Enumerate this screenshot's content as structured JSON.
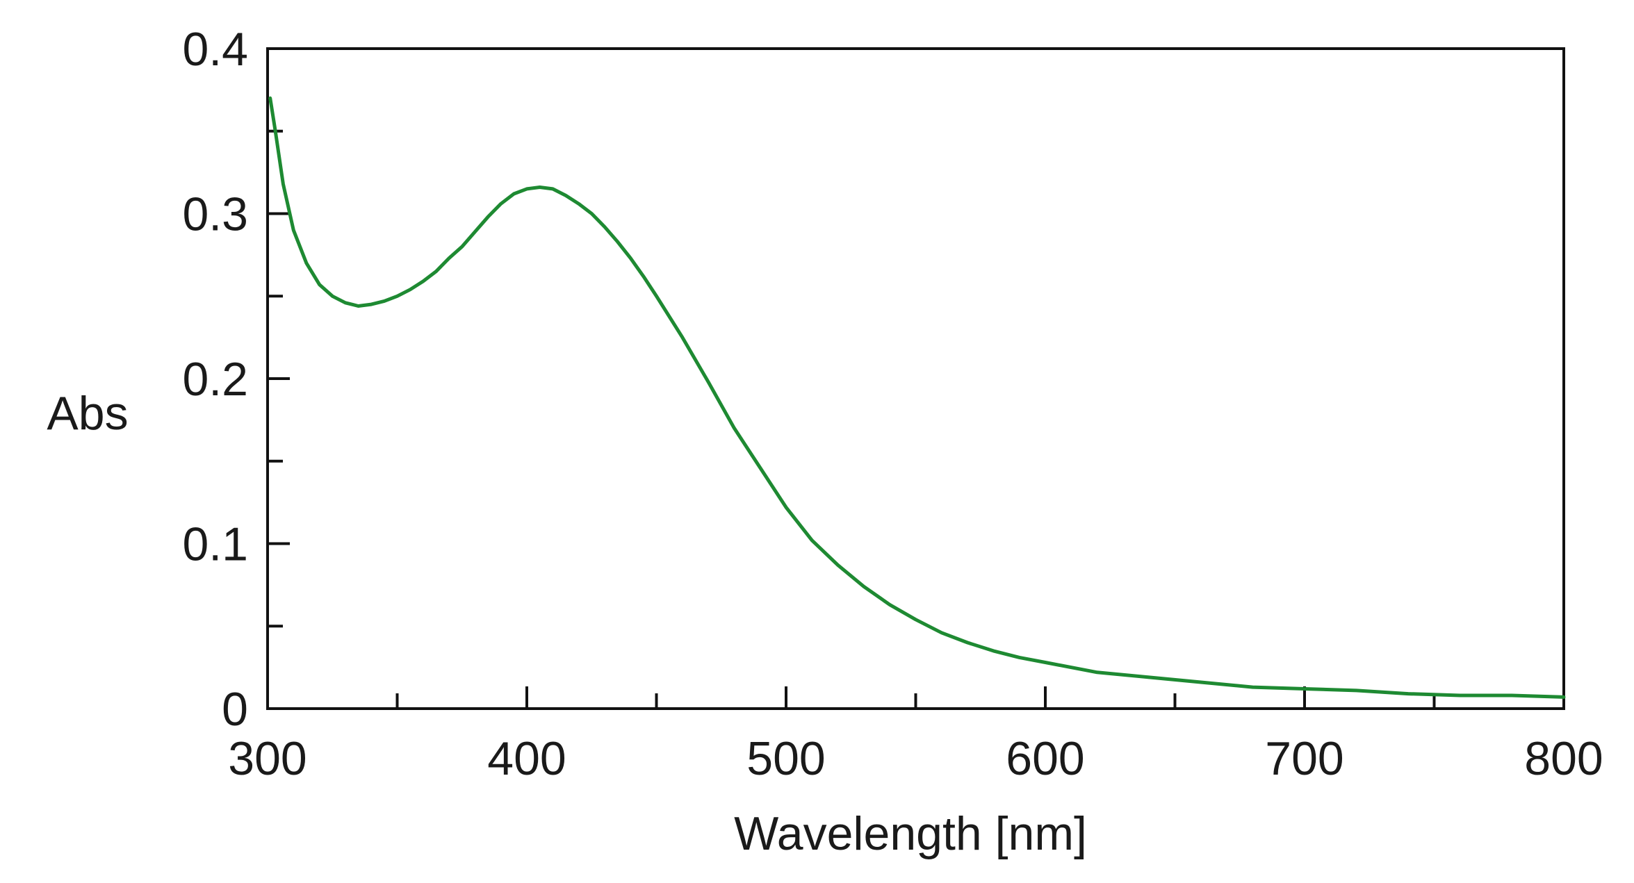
{
  "chart_data": {
    "type": "line",
    "title": "",
    "xlabel": "Wavelength [nm]",
    "ylabel": "Abs",
    "xlim": [
      300,
      800
    ],
    "ylim": [
      0,
      0.4
    ],
    "x_ticks": [
      300,
      400,
      500,
      600,
      700,
      800
    ],
    "x_tick_labels": [
      "300",
      "400",
      "500",
      "600",
      "700",
      "800"
    ],
    "x_minor_ticks": [
      350,
      450,
      550,
      650,
      750
    ],
    "y_ticks": [
      0,
      0.1,
      0.2,
      0.3,
      0.4
    ],
    "y_tick_labels": [
      "0",
      "0.1",
      "0.2",
      "0.3",
      "0.4"
    ],
    "y_minor_ticks": [
      0.05,
      0.15,
      0.25,
      0.35
    ],
    "grid": false,
    "line_color": "#1e8a32",
    "series": [
      {
        "x": [
          301,
          303,
          306,
          310,
          315,
          320,
          325,
          330,
          335,
          340,
          345,
          350,
          355,
          360,
          365,
          370,
          375,
          380,
          385,
          390,
          395,
          400,
          405,
          410,
          415,
          420,
          425,
          430,
          435,
          440,
          445,
          450,
          460,
          470,
          480,
          490,
          500,
          510,
          520,
          530,
          540,
          550,
          560,
          570,
          580,
          590,
          600,
          620,
          640,
          660,
          680,
          700,
          720,
          740,
          760,
          780,
          800
        ],
        "y": [
          0.37,
          0.35,
          0.318,
          0.29,
          0.27,
          0.257,
          0.25,
          0.246,
          0.244,
          0.245,
          0.247,
          0.25,
          0.254,
          0.259,
          0.265,
          0.273,
          0.28,
          0.289,
          0.298,
          0.306,
          0.312,
          0.315,
          0.316,
          0.315,
          0.311,
          0.306,
          0.3,
          0.292,
          0.283,
          0.273,
          0.262,
          0.25,
          0.225,
          0.198,
          0.17,
          0.146,
          0.122,
          0.102,
          0.087,
          0.074,
          0.063,
          0.054,
          0.046,
          0.04,
          0.035,
          0.031,
          0.028,
          0.022,
          0.019,
          0.016,
          0.013,
          0.012,
          0.011,
          0.009,
          0.008,
          0.008,
          0.007
        ]
      }
    ]
  }
}
